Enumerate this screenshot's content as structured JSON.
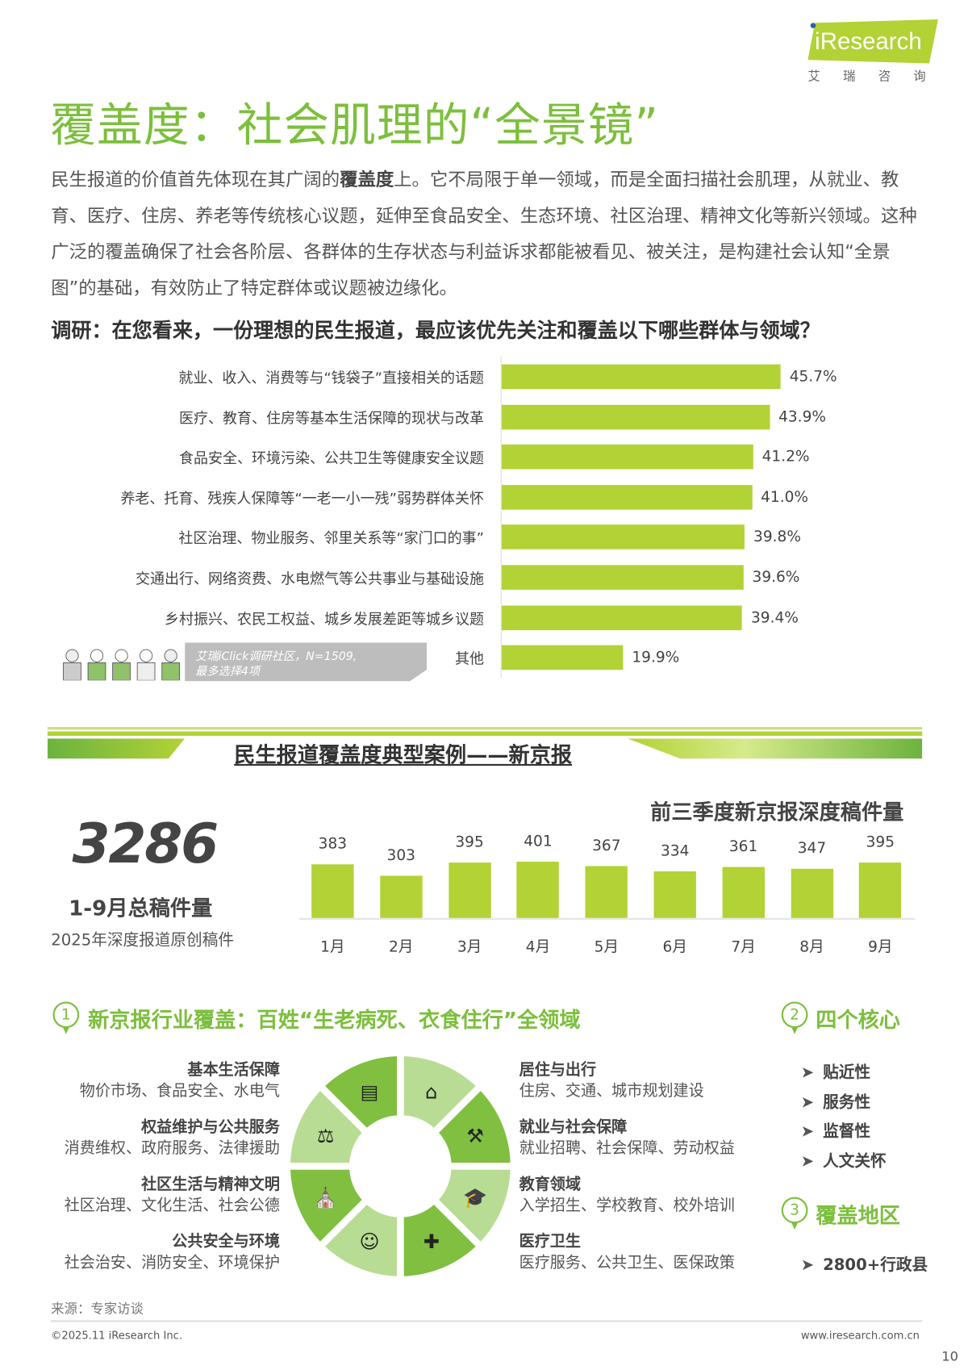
{
  "logo": {
    "brand": "iResearch",
    "cn": "艾瑞咨询"
  },
  "title": "覆盖度：社会肌理的“全景镜”",
  "paragraph": {
    "pre": "民生报道的价值首先体现在其广阔的",
    "bold": "覆盖度",
    "post": "上。它不局限于单一领域，而是全面扫描社会肌理，从就业、教育、医疗、住房、养老等传统核心议题，延伸至食品安全、生态环境、社区治理、精神文化等新兴领域。这种广泛的覆盖确保了社会各阶层、各群体的生存状态与利益诉求都能被看见、被关注，是构建社会认知“全景图”的基础，有效防止了特定群体或议题被边缘化。"
  },
  "question": "调研：在您看来，一份理想的民生报道，最应该优先关注和覆盖以下哪些群体与领域？",
  "chart_data": [
    {
      "type": "bar",
      "orientation": "horizontal",
      "categories": [
        "就业、收入、消费等与“钱袋子”直接相关的话题",
        "医疗、教育、住房等基本生活保障的现状与改革",
        "食品安全、环境污染、公共卫生等健康安全议题",
        "养老、托育、残疾人保障等“一老一小一残”弱势群体关怀",
        "社区治理、物业服务、邻里关系等“家门口的事”",
        "交通出行、网络资费、水电燃气等公共事业与基础设施",
        "乡村振兴、农民工权益、城乡发展差距等城乡议题",
        "其他"
      ],
      "values": [
        45.7,
        43.9,
        41.2,
        41.0,
        39.8,
        39.6,
        39.4,
        19.9
      ],
      "labels": [
        "45.7%",
        "43.9%",
        "41.2%",
        "41.0%",
        "39.8%",
        "39.6%",
        "39.4%",
        "19.9%"
      ],
      "unit": "%",
      "xlim": [
        0,
        50
      ],
      "color": "#b2d235",
      "grid": false
    },
    {
      "type": "bar",
      "title": "前三季度新京报深度稿件量",
      "categories": [
        "1月",
        "2月",
        "3月",
        "4月",
        "5月",
        "6月",
        "7月",
        "8月",
        "9月"
      ],
      "values": [
        383,
        303,
        395,
        401,
        367,
        334,
        361,
        347,
        395
      ],
      "ylim": [
        0,
        410
      ],
      "color": "#b2d235",
      "grid": false
    }
  ],
  "survey_note": {
    "line1": "艾瑞iClick调研社区，N=1509,",
    "line2": "最多选择4项"
  },
  "case_title": "民生报道覆盖度典型案例——新京报",
  "total": {
    "value": "3286",
    "label": "1-9月总稿件量",
    "sub": "2025年深度报道原创稿件"
  },
  "section1": {
    "num": "1",
    "title": "新京报行业覆盖：百姓“生老病死、衣食住行”全领域"
  },
  "section2": {
    "num": "2",
    "title": "四个核心",
    "items": [
      "贴近性",
      "服务性",
      "监督性",
      "人文关怀"
    ]
  },
  "section3": {
    "num": "3",
    "title": "覆盖地区",
    "items": [
      "2800+行政县"
    ]
  },
  "domains_left": [
    {
      "head": "基本生活保障",
      "sub": "物价市场、食品安全、水电气"
    },
    {
      "head": "权益维护与公共服务",
      "sub": "消费维权、政府服务、法律援助"
    },
    {
      "head": "社区生活与精神文明",
      "sub": "社区治理、文化生活、社会公德"
    },
    {
      "head": "公共安全与环境",
      "sub": "社会治安、消防安全、环境保护"
    }
  ],
  "domains_right": [
    {
      "head": "居住与出行",
      "sub": "住房、交通、城市规划建设"
    },
    {
      "head": "就业与社会保障",
      "sub": "就业招聘、社会保障、劳动权益"
    },
    {
      "head": "教育领域",
      "sub": "入学招生、学校教育、校外培训"
    },
    {
      "head": "医疗卫生",
      "sub": "医疗服务、公共卫生、医保政策"
    }
  ],
  "ring": {
    "colors": {
      "dark": "#80bf40",
      "light": "#b8dc93"
    },
    "segments": [
      {
        "icon": "house-people-icon",
        "glyph": "⌂",
        "tone": "light"
      },
      {
        "icon": "hammer-icon",
        "glyph": "⚒",
        "tone": "dark"
      },
      {
        "icon": "graduation-cap-icon",
        "glyph": "🎓",
        "tone": "light"
      },
      {
        "icon": "medical-kit-icon",
        "glyph": "✚",
        "tone": "dark"
      },
      {
        "icon": "police-officer-icon",
        "glyph": "☺",
        "tone": "light"
      },
      {
        "icon": "church-icon",
        "glyph": "⛪",
        "tone": "dark"
      },
      {
        "icon": "scales-icon",
        "glyph": "⚖",
        "tone": "light"
      },
      {
        "icon": "shop-cart-icon",
        "glyph": "▤",
        "tone": "dark"
      }
    ]
  },
  "source": "来源：专家访谈",
  "footer": {
    "copyright": "©2025.11 iResearch Inc.",
    "url": "www.iresearch.com.cn",
    "page": "10"
  },
  "colors": {
    "accent": "#7cbf3c",
    "bar": "#b2d235"
  }
}
